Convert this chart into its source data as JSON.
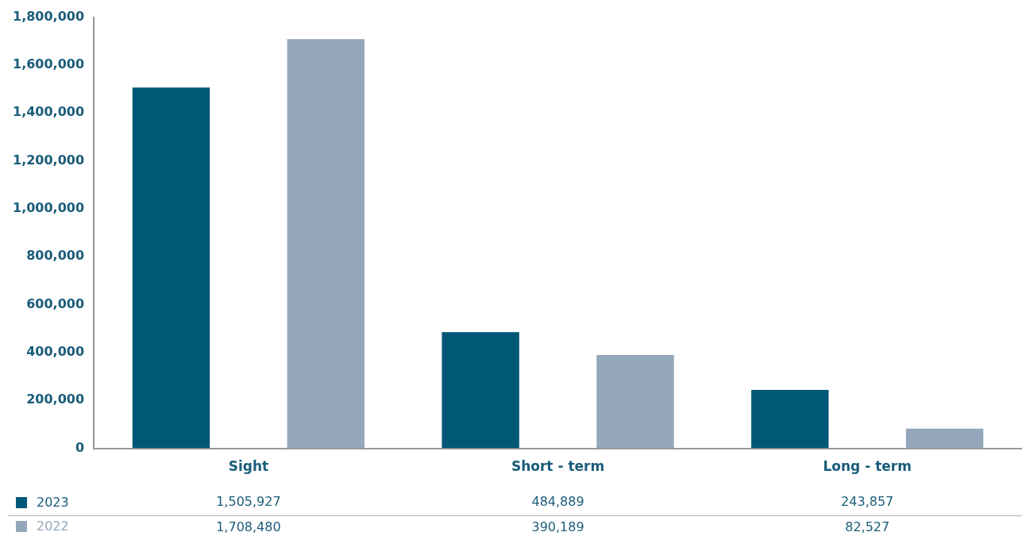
{
  "chart_data": {
    "type": "bar",
    "categories": [
      "Sight",
      "Short - term",
      "Long - term"
    ],
    "series": [
      {
        "name": "2023",
        "color": "#005776",
        "values": [
          1505927,
          484889,
          243857
        ],
        "value_labels": [
          "1,505,927",
          "484,889",
          "243,857"
        ]
      },
      {
        "name": "2022",
        "color": "#95a7ba",
        "values": [
          1708480,
          390189,
          82527
        ],
        "value_labels": [
          "1,708,480",
          "390,189",
          "82,527"
        ]
      }
    ],
    "ylim": [
      0,
      1800000
    ],
    "yticks": [
      {
        "value": 0,
        "label": "0"
      },
      {
        "value": 200000,
        "label": "200,000"
      },
      {
        "value": 400000,
        "label": "400,000"
      },
      {
        "value": 600000,
        "label": "600,000"
      },
      {
        "value": 800000,
        "label": "800,000"
      },
      {
        "value": 1000000,
        "label": "1,000,000"
      },
      {
        "value": 1200000,
        "label": "1,200,000"
      },
      {
        "value": 1400000,
        "label": "1,400,000"
      },
      {
        "value": 1600000,
        "label": "1,600,000"
      },
      {
        "value": 1800000,
        "label": "1,800,000"
      }
    ],
    "grid": false,
    "legend": "bottom"
  }
}
